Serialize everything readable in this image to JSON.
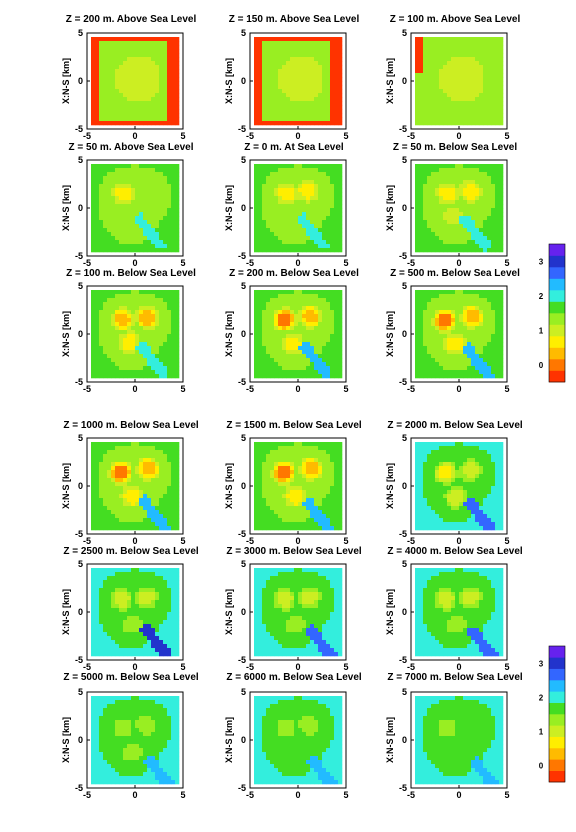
{
  "chart_data": {
    "type": "heatmap",
    "ylabel": "X:N-S [km]",
    "x_ticks": [
      "-5",
      "0",
      "5"
    ],
    "y_ticks": [
      "5",
      "0",
      "-5"
    ],
    "xlim": [
      -5,
      5
    ],
    "ylim": [
      -5,
      5
    ],
    "colorbar_ticks": [
      "3",
      "2",
      "1",
      "0"
    ],
    "colorbar_levels": [
      0,
      0.33,
      0.67,
      1.0,
      1.33,
      1.67,
      2.0,
      2.33,
      2.67,
      3.0,
      3.33
    ],
    "colors": [
      "#ff3300",
      "#ff7700",
      "#ffbb00",
      "#ffee00",
      "#ccee22",
      "#99ee22",
      "#44dd22",
      "#33eedd",
      "#22bbff",
      "#3366ff",
      "#2233cc",
      "#6622ee"
    ],
    "panels": [
      {
        "title": "Z = 200 m. Above Sea Level",
        "background_level": 0,
        "shape": 0,
        "base": 5,
        "peaks": [],
        "lows": []
      },
      {
        "title": "Z = 150 m. Above Sea Level",
        "background_level": 0,
        "shape": 0,
        "base": 5,
        "peaks": [],
        "lows": []
      },
      {
        "title": "Z = 100 m. Above Sea Level",
        "background_level": 5,
        "shape": 1,
        "base": 5,
        "peaks": [],
        "lows": []
      },
      {
        "title": "Z =  50 m. Above Sea Level",
        "background_level": 6,
        "shape": 2,
        "base": 5,
        "peaks": [
          {
            "x": -1.2,
            "y": 1.5,
            "v": 3
          }
        ],
        "lows": [
          {
            "x": 1.5,
            "y": -2.5,
            "v": 7
          }
        ]
      },
      {
        "title": "Z =   0 m. At Sea Level",
        "background_level": 6,
        "shape": 2,
        "base": 5,
        "peaks": [
          {
            "x": -1.2,
            "y": 1.5,
            "v": 3
          },
          {
            "x": 1.0,
            "y": 1.8,
            "v": 3
          }
        ],
        "lows": [
          {
            "x": 1.5,
            "y": -2.5,
            "v": 7
          }
        ]
      },
      {
        "title": "Z =  50 m. Below Sea Level",
        "background_level": 6,
        "shape": 2,
        "base": 5,
        "peaks": [
          {
            "x": -1.2,
            "y": 1.5,
            "v": 3
          },
          {
            "x": 1.2,
            "y": 1.7,
            "v": 3
          },
          {
            "x": -0.6,
            "y": -0.8,
            "v": 4
          }
        ],
        "lows": [
          {
            "x": 1.7,
            "y": -2.6,
            "v": 7
          }
        ]
      },
      {
        "title": "Z = 100 m. Below Sea Level",
        "background_level": 6,
        "shape": 2,
        "base": 5,
        "peaks": [
          {
            "x": -1.3,
            "y": 1.5,
            "v": 2
          },
          {
            "x": 1.3,
            "y": 1.7,
            "v": 2
          },
          {
            "x": -0.6,
            "y": -0.9,
            "v": 3
          }
        ],
        "lows": [
          {
            "x": 1.8,
            "y": -2.7,
            "v": 7
          }
        ]
      },
      {
        "title": "Z = 200 m. Below Sea Level",
        "background_level": 6,
        "shape": 2,
        "base": 5,
        "peaks": [
          {
            "x": -1.4,
            "y": 1.5,
            "v": 1
          },
          {
            "x": 1.3,
            "y": 1.8,
            "v": 2
          },
          {
            "x": -0.5,
            "y": -1.0,
            "v": 3
          }
        ],
        "lows": [
          {
            "x": 1.9,
            "y": -2.8,
            "v": 8
          }
        ]
      },
      {
        "title": "Z = 500 m. Below Sea Level",
        "background_level": 6,
        "shape": 2,
        "base": 5,
        "peaks": [
          {
            "x": -1.5,
            "y": 1.4,
            "v": 1
          },
          {
            "x": 1.4,
            "y": 1.8,
            "v": 2
          },
          {
            "x": -0.4,
            "y": -1.0,
            "v": 3
          }
        ],
        "lows": [
          {
            "x": 2.0,
            "y": -3.0,
            "v": 8
          }
        ]
      },
      {
        "title": "Z = 1000 m. Below Sea Level",
        "background_level": 6,
        "shape": 2,
        "base": 5,
        "peaks": [
          {
            "x": -1.5,
            "y": 1.4,
            "v": 1
          },
          {
            "x": 1.4,
            "y": 1.8,
            "v": 2
          },
          {
            "x": -0.3,
            "y": -1.1,
            "v": 3
          }
        ],
        "lows": [
          {
            "x": 2.0,
            "y": -3.0,
            "v": 8
          }
        ]
      },
      {
        "title": "Z = 1500 m. Below Sea Level",
        "background_level": 6,
        "shape": 2,
        "base": 5,
        "peaks": [
          {
            "x": -1.5,
            "y": 1.4,
            "v": 1
          },
          {
            "x": 1.4,
            "y": 1.8,
            "v": 2
          },
          {
            "x": -0.3,
            "y": -1.1,
            "v": 3
          }
        ],
        "lows": [
          {
            "x": 2.1,
            "y": -3.1,
            "v": 8
          }
        ]
      },
      {
        "title": "Z = 2000 m. Below Sea Level",
        "background_level": 7,
        "shape": 3,
        "base": 6,
        "peaks": [
          {
            "x": -1.4,
            "y": 1.4,
            "v": 3
          },
          {
            "x": 1.2,
            "y": 1.6,
            "v": 4
          },
          {
            "x": -0.3,
            "y": -1.2,
            "v": 4
          }
        ],
        "lows": [
          {
            "x": 2.2,
            "y": -3.1,
            "v": 9
          }
        ]
      },
      {
        "title": "Z = 2500 m. Below Sea Level",
        "background_level": 7,
        "shape": 3,
        "base": 6,
        "peaks": [
          {
            "x": -1.4,
            "y": 1.3,
            "v": 4
          },
          {
            "x": 1.2,
            "y": 1.5,
            "v": 4
          },
          {
            "x": -0.3,
            "y": -1.3,
            "v": 5
          }
        ],
        "lows": [
          {
            "x": 2.3,
            "y": -3.2,
            "v": 10
          }
        ]
      },
      {
        "title": "Z = 3000 m. Below Sea Level",
        "background_level": 7,
        "shape": 3,
        "base": 6,
        "peaks": [
          {
            "x": -1.4,
            "y": 1.3,
            "v": 4
          },
          {
            "x": 1.2,
            "y": 1.5,
            "v": 4
          },
          {
            "x": -0.3,
            "y": -1.3,
            "v": 5
          }
        ],
        "lows": [
          {
            "x": 2.4,
            "y": -3.3,
            "v": 9
          }
        ]
      },
      {
        "title": "Z = 4000 m. Below Sea Level",
        "background_level": 7,
        "shape": 3,
        "base": 6,
        "peaks": [
          {
            "x": -1.4,
            "y": 1.3,
            "v": 4
          },
          {
            "x": 1.2,
            "y": 1.5,
            "v": 4
          },
          {
            "x": -0.3,
            "y": -1.3,
            "v": 5
          }
        ],
        "lows": [
          {
            "x": 2.5,
            "y": -3.4,
            "v": 9
          }
        ]
      },
      {
        "title": "Z = 5000 m. Below Sea Level",
        "background_level": 7,
        "shape": 3,
        "base": 6,
        "peaks": [
          {
            "x": -1.3,
            "y": 1.3,
            "v": 5
          },
          {
            "x": 1.1,
            "y": 1.5,
            "v": 5
          },
          {
            "x": -0.3,
            "y": -1.3,
            "v": 5
          }
        ],
        "lows": [
          {
            "x": 2.6,
            "y": -3.5,
            "v": 8
          }
        ]
      },
      {
        "title": "Z = 6000 m. Below Sea Level",
        "background_level": 7,
        "shape": 3,
        "base": 6,
        "peaks": [
          {
            "x": -1.3,
            "y": 1.3,
            "v": 5
          },
          {
            "x": 1.1,
            "y": 1.5,
            "v": 5
          }
        ],
        "lows": [
          {
            "x": 2.7,
            "y": -3.6,
            "v": 8
          }
        ]
      },
      {
        "title": "Z = 7000 m. Below Sea Level",
        "background_level": 7,
        "shape": 3,
        "base": 6,
        "peaks": [
          {
            "x": -1.3,
            "y": 1.3,
            "v": 5
          }
        ],
        "lows": [
          {
            "x": 2.8,
            "y": -3.7,
            "v": 8
          }
        ]
      }
    ]
  }
}
